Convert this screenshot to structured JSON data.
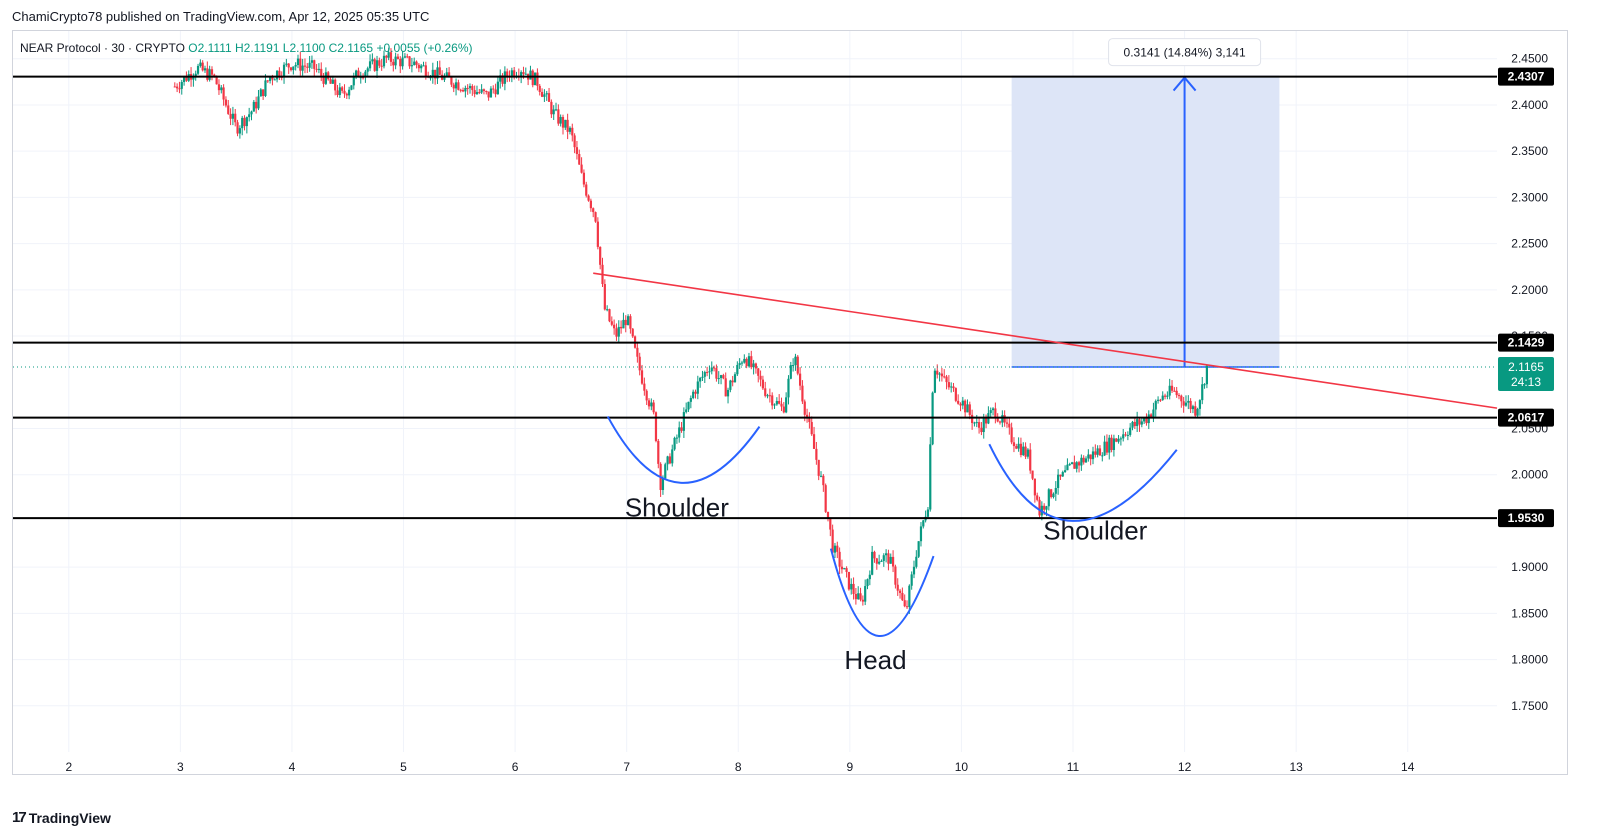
{
  "header": {
    "published_by": "ChamiCrypto78 published on TradingView.com, Apr 12, 2025 05:35 UTC"
  },
  "symbol": {
    "name": "NEAR Protocol · 30 · CRYPTO",
    "ohlc": "O2.1111 H2.1191 L2.1100 C2.1165",
    "change": "+0.0055 (+0.26%)"
  },
  "footer": {
    "brand": "TradingView",
    "logo": "17"
  },
  "colors": {
    "up": "#089981",
    "down": "#f23645",
    "pattern": "#2962ff",
    "trendline": "#f23645",
    "level": "#000000",
    "projection_fill": "#dbe4f7"
  },
  "chart_data": {
    "type": "candlestick",
    "symbol": "NEAR Protocol",
    "timeframe": "30",
    "x_tick_labels": [
      "2",
      "3",
      "4",
      "5",
      "6",
      "7",
      "8",
      "9",
      "10",
      "11",
      "12",
      "13",
      "14"
    ],
    "y_tick_labels": [
      "2.4500",
      "2.4000",
      "2.3500",
      "2.3000",
      "2.2500",
      "2.2000",
      "2.1500",
      "2.0500",
      "2.0000",
      "1.9000",
      "1.8500",
      "1.8000",
      "1.7500"
    ],
    "ylim": [
      1.7,
      2.48
    ],
    "xlim": [
      1.5,
      14.8
    ],
    "horizontal_levels": [
      {
        "price": 2.4307,
        "label": "2.4307"
      },
      {
        "price": 2.1429,
        "label": "2.1429"
      },
      {
        "price": 2.0617,
        "label": "2.0617"
      },
      {
        "price": 1.953,
        "label": "1.9530"
      }
    ],
    "last_price": {
      "price": 2.1165,
      "label": "2.1165",
      "countdown": "24:13"
    },
    "trendline": {
      "start": {
        "x": 6.7,
        "y": 2.218
      },
      "end": {
        "x": 14.8,
        "y": 2.072
      }
    },
    "projection": {
      "x_start": 10.45,
      "x_end": 12.85,
      "y_from": 2.1165,
      "y_to": 2.4307,
      "label": "0.3141 (14.84%) 3,141"
    },
    "annotations": [
      {
        "text": "Shoulder",
        "x": 7.45,
        "y": 1.955
      },
      {
        "text": "Head",
        "x": 9.23,
        "y": 1.79
      },
      {
        "text": "Shoulder",
        "x": 11.2,
        "y": 1.93
      }
    ],
    "price_path": [
      [
        2.95,
        2.42
      ],
      [
        3.15,
        2.44
      ],
      [
        3.3,
        2.43
      ],
      [
        3.5,
        2.375
      ],
      [
        3.65,
        2.395
      ],
      [
        3.8,
        2.43
      ],
      [
        4.0,
        2.445
      ],
      [
        4.2,
        2.44
      ],
      [
        4.45,
        2.41
      ],
      [
        4.6,
        2.435
      ],
      [
        4.85,
        2.45
      ],
      [
        5.1,
        2.445
      ],
      [
        5.35,
        2.43
      ],
      [
        5.55,
        2.42
      ],
      [
        5.75,
        2.41
      ],
      [
        5.95,
        2.435
      ],
      [
        6.05,
        2.44
      ],
      [
        6.2,
        2.425
      ],
      [
        6.35,
        2.39
      ],
      [
        6.5,
        2.37
      ],
      [
        6.6,
        2.32
      ],
      [
        6.72,
        2.28
      ],
      [
        6.8,
        2.18
      ],
      [
        6.9,
        2.15
      ],
      [
        7.0,
        2.17
      ],
      [
        7.1,
        2.12
      ],
      [
        7.25,
        2.06
      ],
      [
        7.3,
        1.99
      ],
      [
        7.45,
        2.04
      ],
      [
        7.6,
        2.09
      ],
      [
        7.75,
        2.12
      ],
      [
        7.9,
        2.09
      ],
      [
        8.05,
        2.13
      ],
      [
        8.25,
        2.09
      ],
      [
        8.4,
        2.07
      ],
      [
        8.5,
        2.13
      ],
      [
        8.6,
        2.07
      ],
      [
        8.75,
        1.99
      ],
      [
        8.85,
        1.92
      ],
      [
        9.0,
        1.88
      ],
      [
        9.1,
        1.86
      ],
      [
        9.2,
        1.91
      ],
      [
        9.35,
        1.91
      ],
      [
        9.5,
        1.85
      ],
      [
        9.6,
        1.92
      ],
      [
        9.7,
        1.97
      ],
      [
        9.75,
        2.12
      ],
      [
        9.85,
        2.1
      ],
      [
        10.0,
        2.08
      ],
      [
        10.15,
        2.05
      ],
      [
        10.3,
        2.07
      ],
      [
        10.45,
        2.04
      ],
      [
        10.6,
        2.02
      ],
      [
        10.7,
        1.96
      ],
      [
        10.85,
        1.99
      ],
      [
        11.0,
        2.01
      ],
      [
        11.15,
        2.02
      ],
      [
        11.35,
        2.035
      ],
      [
        11.5,
        2.05
      ],
      [
        11.65,
        2.06
      ],
      [
        11.8,
        2.085
      ],
      [
        11.9,
        2.09
      ],
      [
        12.0,
        2.08
      ],
      [
        12.1,
        2.07
      ],
      [
        12.15,
        2.09
      ],
      [
        12.2,
        2.1165
      ]
    ]
  }
}
